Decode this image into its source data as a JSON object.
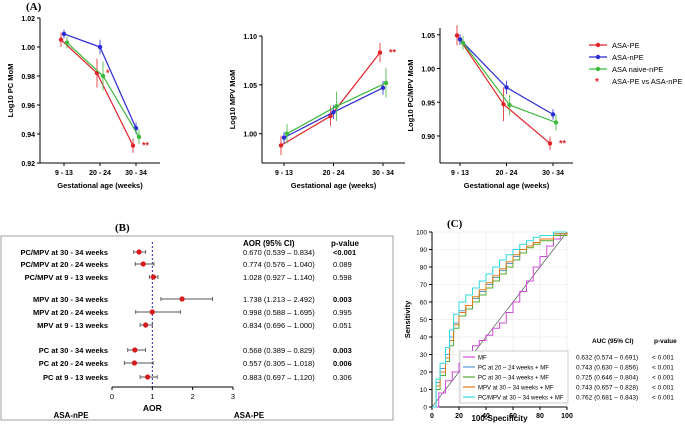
{
  "panel_labels": {
    "a": "(A)",
    "b": "(B)",
    "c": "(C)"
  },
  "colors": {
    "asa_pe": "#e32228",
    "asa_npe": "#2b2bd6",
    "asa_naive": "#3cb93c",
    "forest_point": "#d7191c",
    "roc_mf": "#d04bd8",
    "roc_pc": "#5b9bd5",
    "roc_pcmf": "#55a832",
    "roc_mpv": "#e07a10",
    "roc_pcmpv": "#2ed9e0"
  },
  "chart_data": [
    {
      "type": "line",
      "ylabel": "Log10 PC MoM",
      "xlabel": "Gestational age (weeks)",
      "categories": [
        "9 - 13",
        "20 - 24",
        "30 - 34"
      ],
      "ylim": [
        0.92,
        1.02
      ],
      "yticks": [
        "0.92",
        "0.94",
        "0.96",
        "0.98",
        "1.00",
        "1.02"
      ],
      "series": [
        {
          "name": "ASA-PE",
          "values": [
            1.005,
            0.982,
            0.932
          ],
          "err": [
            0.005,
            0.01,
            0.005
          ]
        },
        {
          "name": "ASA-nPE",
          "values": [
            1.009,
            1.0,
            0.944
          ],
          "err": [
            0.003,
            0.005,
            0.004
          ]
        },
        {
          "name": "ASA naive-nPE",
          "values": [
            1.003,
            0.98,
            0.938
          ],
          "err": [
            0.004,
            0.01,
            0.005
          ]
        }
      ],
      "annotations": [
        {
          "x": "20 - 24",
          "text": "*"
        },
        {
          "x": "30 - 34",
          "text": "**"
        }
      ]
    },
    {
      "type": "line",
      "ylabel": "Log10 MPV MoM",
      "xlabel": "Gestational age (weeks)",
      "categories": [
        "9 - 13",
        "20 - 24",
        "30 - 34"
      ],
      "ylim": [
        0.97,
        1.1
      ],
      "yticks": [
        "1.00",
        "1.05",
        "1.10"
      ],
      "series": [
        {
          "name": "ASA-PE",
          "values": [
            0.988,
            1.018,
            1.083
          ],
          "err": [
            0.01,
            0.01,
            0.01
          ]
        },
        {
          "name": "ASA-nPE",
          "values": [
            0.996,
            1.022,
            1.047
          ],
          "err": [
            0.006,
            0.007,
            0.007
          ]
        },
        {
          "name": "ASA naive-nPE",
          "values": [
            1.0,
            1.028,
            1.052
          ],
          "err": [
            0.01,
            0.015,
            0.015
          ]
        }
      ],
      "annotations": [
        {
          "x": "30 - 34",
          "text": "**"
        }
      ]
    },
    {
      "type": "line",
      "ylabel": "Log10 PC/MPV MoM",
      "xlabel": "Gestational age (weeks)",
      "categories": [
        "9 - 13",
        "20 - 24",
        "30 - 34"
      ],
      "ylim": [
        0.86,
        1.06
      ],
      "yticks": [
        "0.90",
        "0.95",
        "1.00",
        "1.05"
      ],
      "series": [
        {
          "name": "ASA-PE",
          "values": [
            1.049,
            0.947,
            0.889
          ],
          "err": [
            0.015,
            0.025,
            0.01
          ]
        },
        {
          "name": "ASA-nPE",
          "values": [
            1.043,
            0.972,
            0.932
          ],
          "err": [
            0.008,
            0.01,
            0.008
          ]
        },
        {
          "name": "ASA naive-nPE",
          "values": [
            1.038,
            0.946,
            0.92
          ],
          "err": [
            0.01,
            0.015,
            0.012
          ]
        }
      ],
      "annotations": [
        {
          "x": "30 - 34",
          "text": "**"
        }
      ]
    },
    {
      "type": "forest",
      "xlabel": "AOR",
      "left_label": "ASA-nPE",
      "right_label": "ASA-PE",
      "xlim": [
        0,
        3
      ],
      "xticks": [
        "0",
        "1",
        "2",
        "3"
      ],
      "ref_line": 1,
      "header_aor": "AOR (95% CI)",
      "header_p": "p-value",
      "rows": [
        {
          "label": "PC/MPV at 30 - 34 weeks",
          "aor": 0.67,
          "lo": 0.539,
          "hi": 0.834,
          "ci_text": "0.670 (0.539 – 0.834)",
          "p": "<0.001",
          "bold": true,
          "group": 0
        },
        {
          "label": "PC/MPV at 20 - 24 weeks",
          "aor": 0.774,
          "lo": 0.576,
          "hi": 1.04,
          "ci_text": "0.774 (0.576 – 1.040)",
          "p": "0.089",
          "bold": false,
          "group": 0
        },
        {
          "label": "PC/MPV at 9 - 13 weeks",
          "aor": 1.028,
          "lo": 0.927,
          "hi": 1.14,
          "ci_text": "1.028 (0.927 – 1.140)",
          "p": "0.598",
          "bold": false,
          "group": 0
        },
        {
          "label": "MPV at 30 - 34 weeks",
          "aor": 1.738,
          "lo": 1.213,
          "hi": 2.492,
          "ci_text": "1.738 (1.213 – 2.492)",
          "p": "0.003",
          "bold": true,
          "group": 1
        },
        {
          "label": "MPV at 20 - 24 weeks",
          "aor": 0.998,
          "lo": 0.588,
          "hi": 1.695,
          "ci_text": "0.998 (0.588 – 1.695)",
          "p": "0.995",
          "bold": false,
          "group": 1
        },
        {
          "label": "MPV at 9 - 13 weeks",
          "aor": 0.834,
          "lo": 0.696,
          "hi": 1.0,
          "ci_text": "0.834 (0.696 – 1.000)",
          "p": "0.051",
          "bold": false,
          "group": 1
        },
        {
          "label": "PC at 30 - 34 weeks",
          "aor": 0.568,
          "lo": 0.389,
          "hi": 0.829,
          "ci_text": "0.568 (0.389 – 0.829)",
          "p": "0.003",
          "bold": true,
          "group": 2
        },
        {
          "label": "PC at 20 - 24 weeks",
          "aor": 0.557,
          "lo": 0.305,
          "hi": 1.018,
          "ci_text": "0.557 (0.305 – 1.018)",
          "p": "0.006",
          "bold": true,
          "group": 2
        },
        {
          "label": "PC at 9 - 13 weeks",
          "aor": 0.883,
          "lo": 0.697,
          "hi": 1.12,
          "ci_text": "0.883 (0.697 – 1.120)",
          "p": "0.306",
          "bold": false,
          "group": 2
        }
      ]
    },
    {
      "type": "line",
      "subtype": "roc",
      "xlabel": "100-Specificity",
      "ylabel": "Sensitivity",
      "xlim": [
        0,
        100
      ],
      "ylim": [
        0,
        100
      ],
      "xticks": [
        "0",
        "20",
        "40",
        "60",
        "80",
        "100"
      ],
      "yticks": [
        "0",
        "10",
        "20",
        "30",
        "40",
        "50",
        "60",
        "70",
        "80",
        "90",
        "100"
      ],
      "header_auc": "AUC (95% CI)",
      "header_p": "p-value",
      "series": [
        {
          "name": "MF",
          "auc_text": "0.632 (0.574 – 0.691)",
          "p": "< 0.001",
          "x": [
            0,
            5,
            10,
            15,
            20,
            25,
            30,
            35,
            40,
            45,
            50,
            55,
            60,
            65,
            70,
            75,
            80,
            85,
            90,
            95,
            100
          ],
          "y": [
            0,
            8,
            15,
            20,
            25,
            30,
            35,
            38,
            41,
            45,
            48,
            54,
            60,
            66,
            72,
            80,
            86,
            92,
            96,
            99,
            100
          ]
        },
        {
          "name": "PC at 20 – 24 weeks + MF",
          "auc_text": "0.743 (0.630 – 0.856)",
          "p": "< 0.001",
          "x": [
            0,
            3,
            6,
            10,
            13,
            16,
            20,
            25,
            30,
            35,
            40,
            45,
            50,
            55,
            60,
            65,
            70,
            75,
            80,
            90,
            100
          ],
          "y": [
            0,
            14,
            22,
            30,
            40,
            48,
            55,
            58,
            62,
            66,
            70,
            74,
            78,
            82,
            86,
            90,
            92,
            94,
            96,
            99,
            100
          ]
        },
        {
          "name": "PC at 30 – 34 weeks + MF",
          "auc_text": "0.725 (0.646 – 0.804)",
          "p": "< 0.001",
          "x": [
            0,
            3,
            6,
            10,
            13,
            16,
            20,
            25,
            30,
            35,
            40,
            45,
            50,
            55,
            60,
            65,
            70,
            75,
            80,
            90,
            100
          ],
          "y": [
            0,
            10,
            18,
            26,
            35,
            45,
            52,
            56,
            60,
            64,
            68,
            72,
            76,
            80,
            84,
            88,
            91,
            93,
            95,
            98,
            100
          ]
        },
        {
          "name": "MPV at 30 – 34 weeks + MF",
          "auc_text": "0.743 (0.657 – 0.828)",
          "p": "< 0.001",
          "x": [
            0,
            3,
            6,
            10,
            13,
            16,
            20,
            25,
            30,
            35,
            40,
            45,
            50,
            55,
            60,
            65,
            70,
            75,
            80,
            90,
            100
          ],
          "y": [
            0,
            12,
            20,
            28,
            38,
            47,
            54,
            58,
            63,
            67,
            71,
            75,
            79,
            83,
            87,
            90,
            92,
            94,
            96,
            99,
            100
          ]
        },
        {
          "name": "PC/MPV at 30 – 34 weeks + MF",
          "auc_text": "0.762 (0.681 – 0.843)",
          "p": "< 0.001",
          "x": [
            0,
            3,
            6,
            10,
            13,
            16,
            20,
            25,
            30,
            35,
            40,
            45,
            50,
            55,
            60,
            65,
            70,
            75,
            80,
            90,
            100
          ],
          "y": [
            0,
            16,
            25,
            34,
            44,
            53,
            60,
            64,
            68,
            72,
            76,
            80,
            84,
            87,
            90,
            93,
            95,
            97,
            98,
            100,
            100
          ]
        }
      ]
    }
  ]
}
